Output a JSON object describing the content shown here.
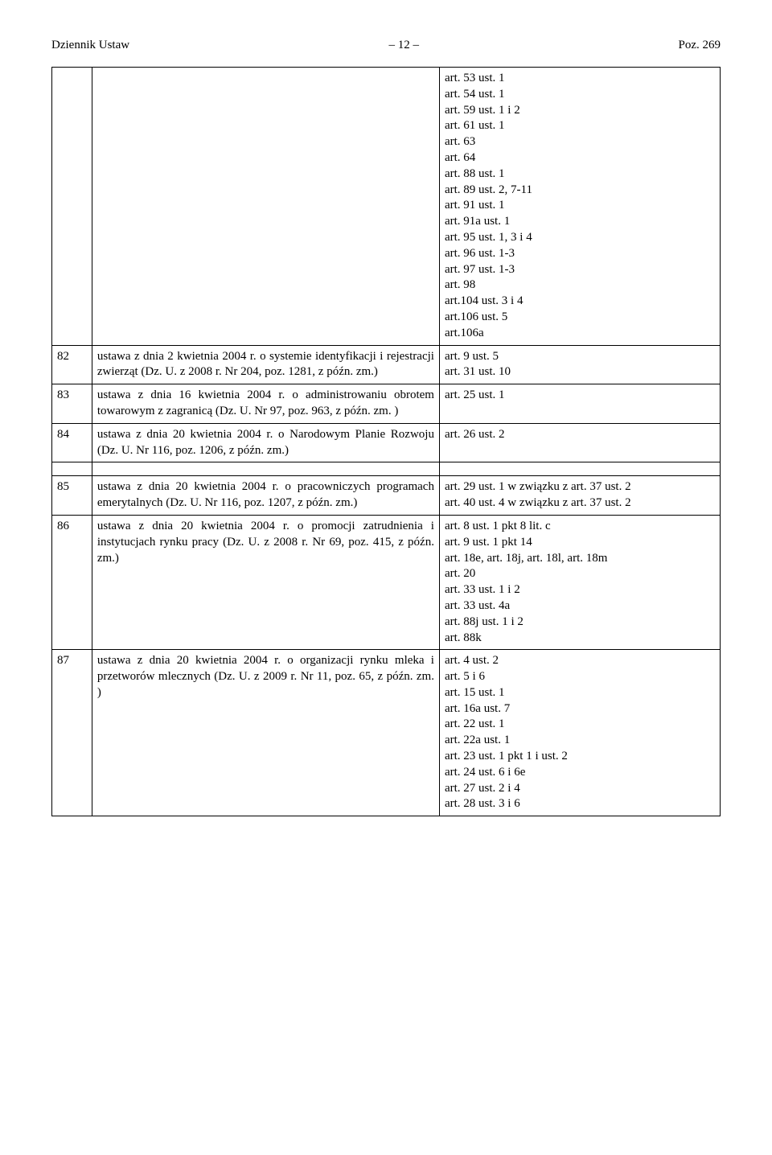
{
  "header": {
    "left": "Dziennik Ustaw",
    "center": "– 12 –",
    "right": "Poz. 269"
  },
  "rows": [
    {
      "num": "",
      "desc": "",
      "art": [
        "art. 53 ust. 1",
        "art. 54 ust. 1",
        "art. 59 ust. 1 i 2",
        "art. 61 ust. 1",
        "art. 63",
        "art. 64",
        "art. 88 ust. 1",
        "art. 89 ust. 2, 7-11",
        "art. 91 ust. 1",
        "art. 91a ust. 1",
        "art. 95 ust. 1, 3 i 4",
        "art. 96 ust. 1-3",
        "art. 97 ust. 1-3",
        "art. 98",
        "art.104 ust. 3 i 4",
        "art.106 ust. 5",
        "art.106a"
      ]
    },
    {
      "num": "82",
      "desc": "ustawa z dnia 2 kwietnia 2004 r. o systemie identyfikacji i rejestracji zwierząt (Dz. U. z 2008 r. Nr 204, poz. 1281, z późn. zm.)",
      "art": [
        "art. 9 ust. 5",
        "art. 31 ust. 10"
      ]
    },
    {
      "num": "83",
      "desc": "ustawa z dnia 16 kwietnia 2004 r. o administrowaniu obrotem towarowym z zagranicą (Dz. U. Nr 97, poz. 963, z późn. zm. )",
      "art": [
        "art. 25 ust. 1"
      ]
    },
    {
      "num": "84",
      "desc": "ustawa z dnia 20 kwietnia 2004 r. o Narodowym Planie Rozwoju (Dz. U. Nr 116, poz. 1206, z późn. zm.)",
      "art": [
        "art. 26 ust. 2"
      ]
    },
    {
      "num": "85",
      "desc": "ustawa z dnia 20 kwietnia 2004 r. o pracowniczych programach emerytalnych (Dz. U. Nr 116, poz. 1207, z późn. zm.)",
      "art": [
        "art. 29 ust. 1 w związku z art. 37 ust. 2",
        "art. 40 ust. 4 w związku z art. 37 ust. 2"
      ]
    },
    {
      "num": "86",
      "desc": "ustawa z dnia 20 kwietnia 2004 r. o promocji zatrudnienia i instytucjach rynku pracy (Dz. U. z 2008 r. Nr 69, poz. 415, z późn. zm.)",
      "art": [
        "art. 8 ust. 1 pkt 8 lit. c",
        "art. 9 ust. 1 pkt 14",
        "art. 18e, art. 18j, art. 18l, art. 18m",
        "art. 20",
        "art. 33 ust. 1 i 2",
        "art. 33 ust. 4a",
        "art. 88j ust. 1 i 2",
        "art. 88k"
      ]
    },
    {
      "num": "87",
      "desc": "ustawa z dnia 20 kwietnia 2004 r. o organizacji rynku mleka i przetworów mlecznych (Dz. U. z 2009 r. Nr 11, poz. 65, z późn. zm. )",
      "art": [
        "art. 4 ust. 2",
        "art. 5 i 6",
        "art. 15 ust. 1",
        "art. 16a ust. 7",
        "art. 22 ust. 1",
        "art. 22a ust. 1",
        "art. 23 ust. 1 pkt 1 i ust. 2",
        "art. 24 ust. 6 i 6e",
        "art. 27 ust. 2 i 4",
        "art. 28 ust. 3 i 6"
      ]
    }
  ]
}
